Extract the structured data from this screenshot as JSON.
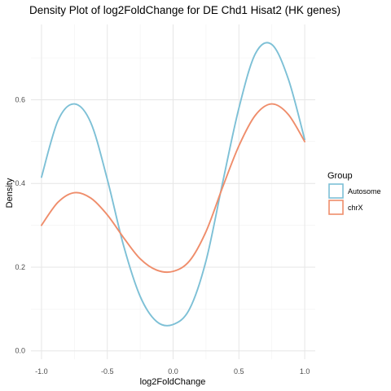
{
  "chart_data": {
    "type": "line",
    "title": "Density Plot of log2FoldChange for DE Chd1 Hisat2 (HK genes)",
    "xlabel": "log2FoldChange",
    "ylabel": "Density",
    "xlim": [
      -1.08,
      1.08
    ],
    "ylim": [
      -0.02,
      0.78
    ],
    "x_ticks": [
      -1.0,
      -0.5,
      0.0,
      0.5,
      1.0
    ],
    "x_tick_labels": [
      "-1.0",
      "-0.5",
      "0.0",
      "0.5",
      "1.0"
    ],
    "y_ticks": [
      0.0,
      0.2,
      0.4,
      0.6
    ],
    "y_tick_labels": [
      "0.0",
      "0.2",
      "0.4",
      "0.6"
    ],
    "grid": true,
    "legend": {
      "title": "Group",
      "position": "right"
    },
    "x": [
      -1.0,
      -0.875,
      -0.75,
      -0.625,
      -0.5,
      -0.375,
      -0.25,
      -0.125,
      0.0,
      0.125,
      0.25,
      0.375,
      0.5,
      0.625,
      0.75,
      0.875,
      1.0
    ],
    "series": [
      {
        "name": "Autosome",
        "color": "#7dc0d6",
        "values": [
          0.415,
          0.55,
          0.59,
          0.545,
          0.41,
          0.25,
          0.13,
          0.07,
          0.063,
          0.1,
          0.215,
          0.4,
          0.58,
          0.71,
          0.732,
          0.65,
          0.505
        ]
      },
      {
        "name": "chrX",
        "color": "#ef8d6b",
        "values": [
          0.3,
          0.355,
          0.378,
          0.365,
          0.325,
          0.27,
          0.22,
          0.193,
          0.19,
          0.215,
          0.285,
          0.39,
          0.49,
          0.563,
          0.59,
          0.565,
          0.5
        ]
      }
    ]
  }
}
